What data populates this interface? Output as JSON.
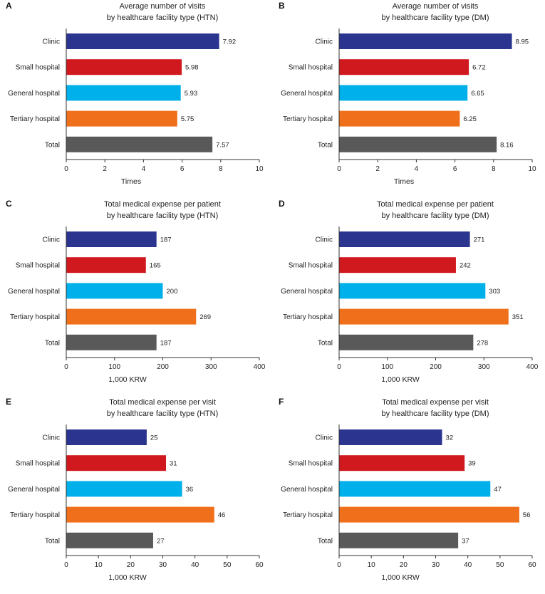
{
  "chart_data": [
    {
      "type": "bar",
      "orientation": "horizontal",
      "panel_label": "A",
      "title_lines": [
        "Average number of visits",
        "by healthcare facility type (HTN)"
      ],
      "categories": [
        "Clinic",
        "Small hospital",
        "General hospital",
        "Tertiary hospital",
        "Total"
      ],
      "values": [
        7.92,
        5.98,
        5.93,
        5.75,
        7.57
      ],
      "value_labels": [
        "7.92",
        "5.98",
        "5.93",
        "5.75",
        "7.57"
      ],
      "xlabel": "Times",
      "xlim": [
        0,
        10
      ],
      "xticks": [
        0,
        2,
        4,
        6,
        8,
        10
      ],
      "colors": [
        "#2b3590",
        "#d0191e",
        "#00b0ea",
        "#ef6f1a",
        "#595959"
      ]
    },
    {
      "type": "bar",
      "orientation": "horizontal",
      "panel_label": "B",
      "title_lines": [
        "Average number  of visits",
        "by healthcare facility type (DM)"
      ],
      "categories": [
        "Clinic",
        "Small hospital",
        "General hospital",
        "Tertiary hospital",
        "Total"
      ],
      "values": [
        8.95,
        6.72,
        6.65,
        6.25,
        8.16
      ],
      "value_labels": [
        "8.95",
        "6.72",
        "6.65",
        "6.25",
        "8.16"
      ],
      "xlabel": "Times",
      "xlim": [
        0,
        10
      ],
      "xticks": [
        0,
        2,
        4,
        6,
        8,
        10
      ],
      "colors": [
        "#2b3590",
        "#d0191e",
        "#00b0ea",
        "#ef6f1a",
        "#595959"
      ]
    },
    {
      "type": "bar",
      "orientation": "horizontal",
      "panel_label": "C",
      "title_lines": [
        "Total medical expense per patient",
        "by healthcare facility type (HTN)"
      ],
      "categories": [
        "Clinic",
        "Small hospital",
        "General hospital",
        "Tertiary hospital",
        "Total"
      ],
      "values": [
        187,
        165,
        200,
        269,
        187
      ],
      "value_labels": [
        "187",
        "165",
        "200",
        "269",
        "187"
      ],
      "xlabel": "1,000 KRW",
      "xlim": [
        0,
        400
      ],
      "xticks": [
        0,
        100,
        200,
        300,
        400
      ],
      "colors": [
        "#2b3590",
        "#d0191e",
        "#00b0ea",
        "#ef6f1a",
        "#595959"
      ]
    },
    {
      "type": "bar",
      "orientation": "horizontal",
      "panel_label": "D",
      "title_lines": [
        "Total medical expense per patient",
        "by healthcare facility type (DM)"
      ],
      "categories": [
        "Clinic",
        "Small hospital",
        "General hospital",
        "Tertiary hospital",
        "Total"
      ],
      "values": [
        271,
        242,
        303,
        351,
        278
      ],
      "value_labels": [
        "271",
        "242",
        "303",
        "351",
        "278"
      ],
      "xlabel": "1,000 KRW",
      "xlim": [
        0,
        400
      ],
      "xticks": [
        0,
        100,
        200,
        300,
        400
      ],
      "colors": [
        "#2b3590",
        "#d0191e",
        "#00b0ea",
        "#ef6f1a",
        "#595959"
      ]
    },
    {
      "type": "bar",
      "orientation": "horizontal",
      "panel_label": "E",
      "title_lines": [
        "Total medical expense per visit",
        "by healthcare facility type (HTN)"
      ],
      "categories": [
        "Clinic",
        "Small hospital",
        "General hospital",
        "Tertiary hospital",
        "Total"
      ],
      "values": [
        25,
        31,
        36,
        46,
        27
      ],
      "value_labels": [
        "25",
        "31",
        "36",
        "46",
        "27"
      ],
      "xlabel": "1,000 KRW",
      "xlim": [
        0,
        60
      ],
      "xticks": [
        0,
        10,
        20,
        30,
        40,
        50,
        60
      ],
      "colors": [
        "#2b3590",
        "#d0191e",
        "#00b0ea",
        "#ef6f1a",
        "#595959"
      ]
    },
    {
      "type": "bar",
      "orientation": "horizontal",
      "panel_label": "F",
      "title_lines": [
        "Total medical expense per visit",
        "by healthcare facility type (DM)"
      ],
      "categories": [
        "Clinic",
        "Small hospital",
        "General hospital",
        "Tertiary hospital",
        "Total"
      ],
      "values": [
        32,
        39,
        47,
        56,
        37
      ],
      "value_labels": [
        "32",
        "39",
        "47",
        "56",
        "37"
      ],
      "xlabel": "1,000 KRW",
      "xlim": [
        0,
        60
      ],
      "xticks": [
        0,
        10,
        20,
        30,
        40,
        50,
        60
      ],
      "colors": [
        "#2b3590",
        "#d0191e",
        "#00b0ea",
        "#ef6f1a",
        "#595959"
      ]
    }
  ]
}
